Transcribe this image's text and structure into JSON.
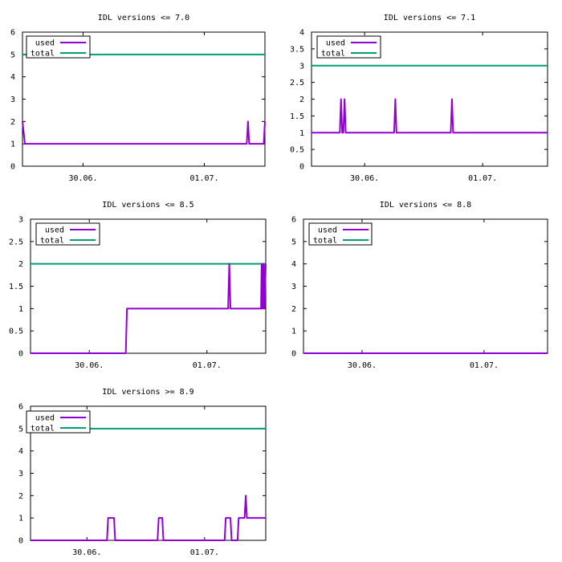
{
  "chart_data": [
    {
      "type": "line",
      "title": "IDL versions <= 7.0",
      "x_range_days": [
        0.0,
        2.0
      ],
      "xticks": [
        {
          "x": 0.5,
          "label": "30.06."
        },
        {
          "x": 1.5,
          "label": "01.07."
        }
      ],
      "ylim": [
        0,
        6
      ],
      "yticks": [
        "0",
        "1",
        "2",
        "3",
        "4",
        "5",
        "6"
      ],
      "legend": "top-left",
      "series": [
        {
          "name": "used",
          "color": "#9400d3",
          "points": [
            [
              0,
              2
            ],
            [
              0.02,
              1
            ],
            [
              1.85,
              1
            ],
            [
              1.86,
              2
            ],
            [
              1.87,
              1
            ],
            [
              1.99,
              1
            ],
            [
              2.0,
              2
            ]
          ]
        },
        {
          "name": "total",
          "color": "#009e73",
          "points": [
            [
              0,
              5
            ],
            [
              2.0,
              5
            ]
          ]
        }
      ]
    },
    {
      "type": "line",
      "title": "IDL versions <= 7.1",
      "x_range_days": [
        0.0,
        2.0
      ],
      "xticks": [
        {
          "x": 0.45,
          "label": "30.06."
        },
        {
          "x": 1.45,
          "label": "01.07."
        }
      ],
      "ylim": [
        0,
        4
      ],
      "yticks": [
        "0",
        "0.5",
        "1",
        "1.5",
        "2",
        "2.5",
        "3",
        "3.5",
        "4"
      ],
      "legend": "top-left",
      "series": [
        {
          "name": "used",
          "color": "#9400d3",
          "points": [
            [
              0,
              1
            ],
            [
              0.24,
              1
            ],
            [
              0.25,
              2
            ],
            [
              0.26,
              1
            ],
            [
              0.27,
              1
            ],
            [
              0.28,
              2
            ],
            [
              0.29,
              1
            ],
            [
              0.7,
              1
            ],
            [
              0.71,
              2
            ],
            [
              0.72,
              1
            ],
            [
              1.18,
              1
            ],
            [
              1.19,
              2
            ],
            [
              1.2,
              1
            ],
            [
              2.0,
              1
            ]
          ]
        },
        {
          "name": "total",
          "color": "#009e73",
          "points": [
            [
              0,
              3
            ],
            [
              2.0,
              3
            ]
          ]
        }
      ]
    },
    {
      "type": "line",
      "title": "IDL versions <= 8.5",
      "x_range_days": [
        0.0,
        2.0
      ],
      "xticks": [
        {
          "x": 0.5,
          "label": "30.06."
        },
        {
          "x": 1.5,
          "label": "01.07."
        }
      ],
      "ylim": [
        0,
        3
      ],
      "yticks": [
        "0",
        "0.5",
        "1",
        "1.5",
        "2",
        "2.5",
        "3"
      ],
      "legend": "top-left",
      "series": [
        {
          "name": "used",
          "color": "#9400d3",
          "points": [
            [
              0,
              0
            ],
            [
              0.81,
              0
            ],
            [
              0.82,
              1
            ],
            [
              1.68,
              1
            ],
            [
              1.69,
              2
            ],
            [
              1.7,
              1
            ],
            [
              1.96,
              1
            ],
            [
              1.965,
              2
            ],
            [
              1.97,
              1
            ],
            [
              1.975,
              2
            ],
            [
              1.98,
              1
            ],
            [
              1.985,
              2
            ],
            [
              1.99,
              1
            ],
            [
              2.0,
              2
            ]
          ]
        },
        {
          "name": "total",
          "color": "#009e73",
          "points": [
            [
              0,
              2
            ],
            [
              2.0,
              2
            ]
          ]
        }
      ]
    },
    {
      "type": "line",
      "title": "IDL versions <= 8.8",
      "x_range_days": [
        0.0,
        2.0
      ],
      "xticks": [
        {
          "x": 0.48,
          "label": "30.06."
        },
        {
          "x": 1.48,
          "label": "01.07."
        }
      ],
      "ylim": [
        0,
        6
      ],
      "yticks": [
        "0",
        "1",
        "2",
        "3",
        "4",
        "5",
        "6"
      ],
      "legend": "top-left",
      "series": [
        {
          "name": "used",
          "color": "#9400d3",
          "points": [
            [
              0,
              0
            ],
            [
              2.0,
              0
            ]
          ]
        },
        {
          "name": "total",
          "color": "#009e73",
          "points": [
            [
              0,
              0
            ],
            [
              2.0,
              0
            ]
          ]
        }
      ]
    },
    {
      "type": "line",
      "title": "IDL versions >= 8.9",
      "x_range_days": [
        0.0,
        2.0
      ],
      "xticks": [
        {
          "x": 0.48,
          "label": "30.06."
        },
        {
          "x": 1.48,
          "label": "01.07."
        }
      ],
      "ylim": [
        0,
        6
      ],
      "yticks": [
        "0",
        "1",
        "2",
        "3",
        "4",
        "5",
        "6"
      ],
      "legend": "top-left",
      "series": [
        {
          "name": "used",
          "color": "#9400d3",
          "points": [
            [
              0,
              0
            ],
            [
              0.65,
              0
            ],
            [
              0.66,
              1
            ],
            [
              0.71,
              1
            ],
            [
              0.72,
              0
            ],
            [
              1.08,
              0
            ],
            [
              1.09,
              1
            ],
            [
              1.12,
              1
            ],
            [
              1.13,
              0
            ],
            [
              1.65,
              0
            ],
            [
              1.66,
              1
            ],
            [
              1.7,
              1
            ],
            [
              1.71,
              0
            ],
            [
              1.76,
              0
            ],
            [
              1.77,
              1
            ],
            [
              1.82,
              1
            ],
            [
              1.83,
              2
            ],
            [
              1.84,
              1
            ],
            [
              2.0,
              1
            ]
          ]
        },
        {
          "name": "total",
          "color": "#009e73",
          "points": [
            [
              0,
              5
            ],
            [
              2.0,
              5
            ]
          ]
        }
      ]
    }
  ]
}
